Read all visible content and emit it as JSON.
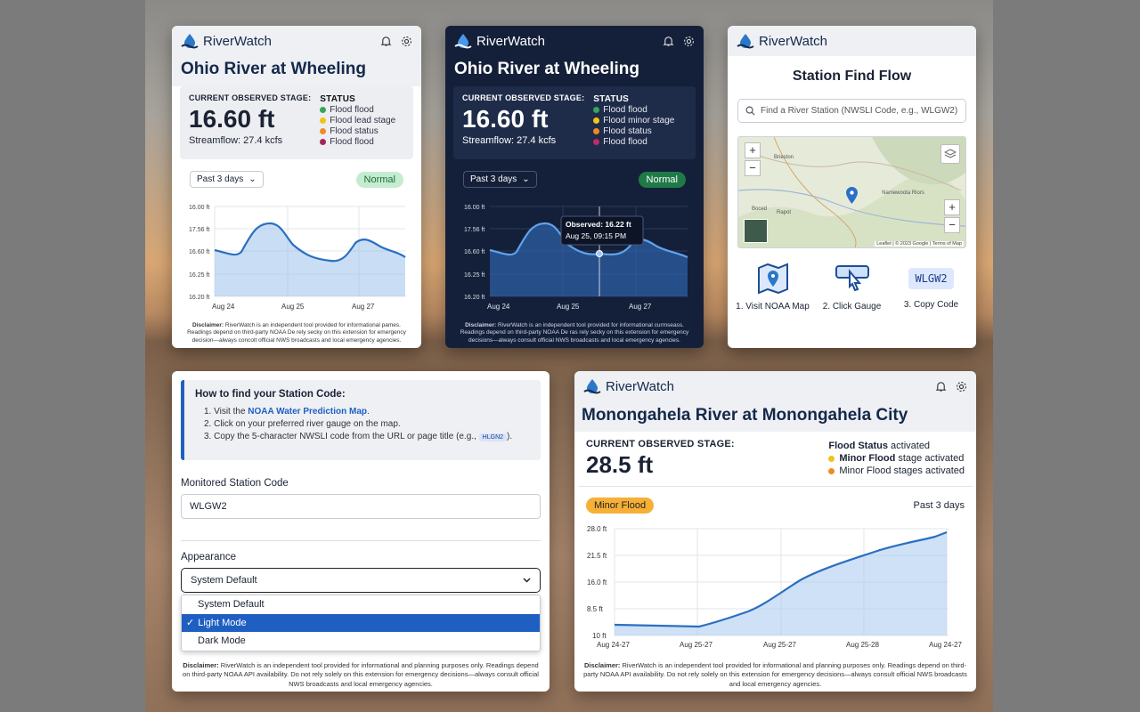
{
  "app": {
    "name": "RiverWatch"
  },
  "light": {
    "title": "Ohio River at Wheeling",
    "stage_label": "CURRENT OBSERVED STAGE:",
    "stage": "16.60 ft",
    "flow": "Streamflow: 27.4 kcfs",
    "status_label": "STATUS",
    "statuses": [
      {
        "label": "Flood flood",
        "color": "#3aa35b"
      },
      {
        "label": "Flood lead stage",
        "color": "#f2c318"
      },
      {
        "label": "Flood status",
        "color": "#f08a24"
      },
      {
        "label": "Flood flood",
        "color": "#a3245a"
      }
    ],
    "range": "Past 3 days",
    "badge": "Normal",
    "disclaimer_b": "Disclaimer:",
    "disclaimer": " RiverWatch is an independent tool provided for informational pames. Readings depend on third-party NOAA De rely secky on this extension for emergency decision—always concolt official NWS broadcasts and local emergency agencies."
  },
  "dark": {
    "title": "Ohio River at Wheeling",
    "stage_label": "CURRENT OBSERVED STAGE:",
    "stage": "16.60 ft",
    "flow": "Streamflow: 27.4 kcfs",
    "status_label": "STATUS",
    "statuses": [
      {
        "label": "Flood flood",
        "color": "#3aa35b"
      },
      {
        "label": "Flood minor stage",
        "color": "#f2c318"
      },
      {
        "label": "Flood status",
        "color": "#f08a24"
      },
      {
        "label": "Flood flood",
        "color": "#c02a67"
      }
    ],
    "range": "Past 3 days",
    "badge": "Normal",
    "tooltip_title": "Observed: 16.22 ft",
    "tooltip_time": "Aug 25, 09:15 PM",
    "disclaimer_b": "Disclaimer:",
    "disclaimer": " RiverWatch is an independent tool provided for informational curmseass. Readings depend on third-party NOAA De ras rely secky on this extension for emergency decisions—always consult official NWS broadcasts and local emergency agencies."
  },
  "ohio_chart": {
    "type": "line",
    "y_ticks": [
      "16.00 ft",
      "17.56 ft",
      "16.60 ft",
      "16.25 ft",
      "16.20 ft"
    ],
    "x_ticks": [
      "Aug 24",
      "Aug 25",
      "Aug 27"
    ]
  },
  "station_find": {
    "title": "Station Find Flow",
    "search_placeholder": "Find a River Station (NWSLI Code, e.g., WLGW2)",
    "map_labels": [
      "Brieston",
      "Namewoota Riors",
      "Boced",
      "Rapot"
    ],
    "attribution": "Leaflet | © 2023 Google | Terms of Map",
    "steps": [
      {
        "label": "1. Visit NOAA Map",
        "icon": "map-icon"
      },
      {
        "label": "2. Click Gauge",
        "icon": "click-icon"
      },
      {
        "label": "3. Copy Code",
        "icon": "code-icon"
      }
    ],
    "code_example": "WLGW2"
  },
  "settings": {
    "howto_title": "How to find your Station Code:",
    "step1_pre": "1. Visit the ",
    "step1_link": "NOAA Water Prediction Map",
    "step1_post": ".",
    "step2": "2. Click on your preferred river gauge on the map.",
    "step3_pre": "3. Copy the 5-character NWSLI code from the URL or page title (e.g., ",
    "step3_chip": "HLGN2",
    "step3_post": ").",
    "code_label": "Monitored Station Code",
    "code_value": "WLGW2",
    "appearance_label": "Appearance",
    "appearance_value": "System Default",
    "options": [
      "System Default",
      "Light Mode",
      "Dark Mode"
    ],
    "selected_option": "Light Mode",
    "check": "✓",
    "disclaimer_b": "Disclaimer:",
    "disclaimer": " RiverWatch is an independent tool provided for informational and planning purposes only. Readings depend on third-party NOAA API availability. Do not rely solely on this extension for emergency decisions—always consult official NWS broadcasts and local emergency agencies."
  },
  "mono": {
    "title": "Monongahela River at Monongahela City",
    "stage_label": "CURRENT OBSERVED STAGE:",
    "stage": "28.5 ft",
    "status_b": "Flood Status",
    "status_rest": " activated",
    "line1_b": "Minor Flood",
    "line1_rest": " stage activated",
    "line1_color": "#f2c318",
    "line2": "Minor Flood stages activated",
    "line2_color": "#f08a24",
    "badge": "Minor Flood",
    "range": "Past 3 days",
    "disclaimer_b": "Disclaimer:",
    "disclaimer": " RiverWatch is an independent tool provided for informational and planning purposes only. Readings depend on third-party NOAA API availability. Do not rely solely on this extension for emergency decisions—always consult official NWS broadcasts and local emergency agencies."
  },
  "mono_chart": {
    "type": "area",
    "y_ticks": [
      "28.0 ft",
      "21.5 ft",
      "16.0 ft",
      "8.5 ft",
      "10 ft"
    ],
    "x_ticks": [
      "Aug 24-27",
      "Aug 25-27",
      "Aug 25-27",
      "Aug 25-28",
      "Aug 24-27"
    ]
  }
}
